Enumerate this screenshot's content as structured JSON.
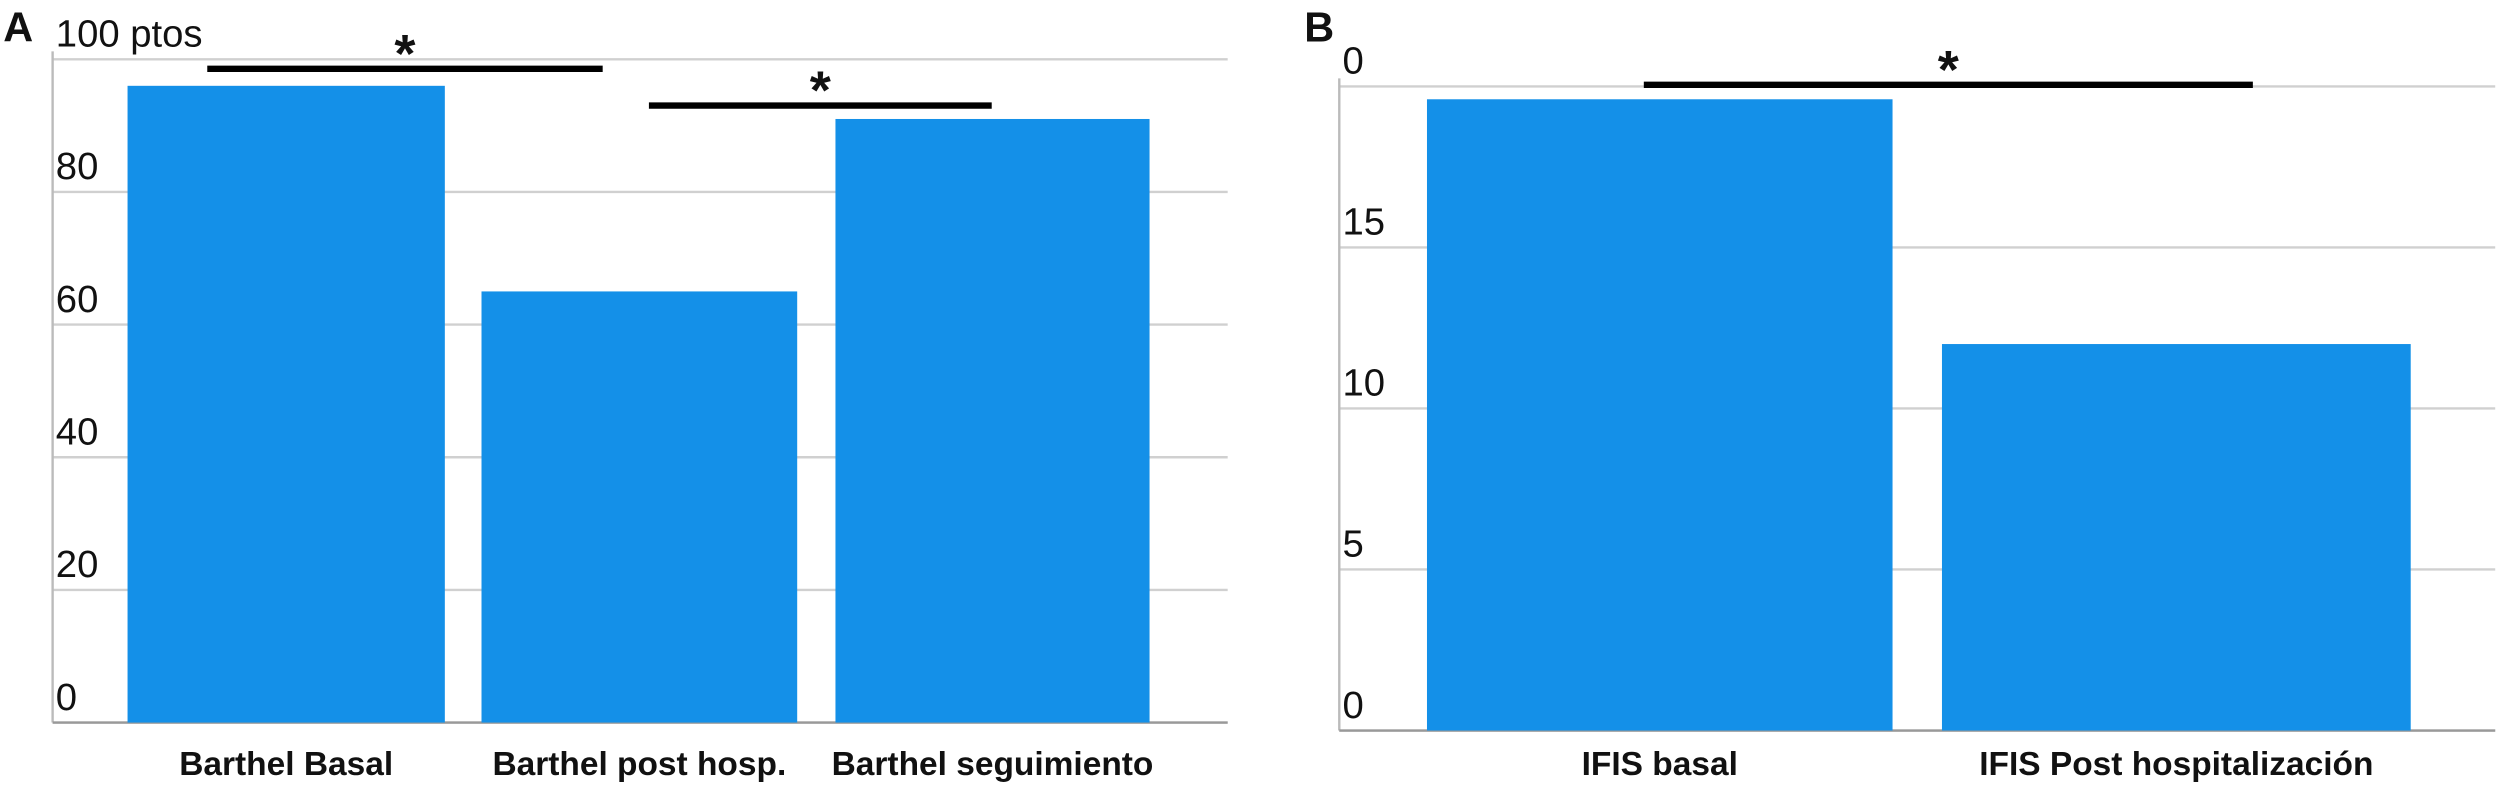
{
  "chart_data": [
    {
      "type": "bar",
      "panel": "A",
      "categories": [
        "Barthel Basal",
        "Barthel post hosp.",
        "Barthel seguimiento"
      ],
      "values": [
        96,
        65,
        91
      ],
      "color": "#1490e8",
      "ylim": [
        0,
        100
      ],
      "yticks": [
        0,
        20,
        40,
        60,
        80,
        {
          "value": 100,
          "label": "100 ptos"
        }
      ],
      "grid": true,
      "annotations": [
        "*",
        "*"
      ]
    },
    {
      "type": "bar",
      "panel": "B",
      "categories": [
        "IFIS basal",
        "IFIS Post hospitalización"
      ],
      "values": [
        19.6,
        12
      ],
      "color": "#1490e8",
      "ylim": [
        0,
        20
      ],
      "yticks": [
        0,
        5,
        10,
        15,
        {
          "value": 20,
          "label": "0"
        }
      ],
      "grid": true,
      "annotations": [
        "*"
      ]
    }
  ]
}
